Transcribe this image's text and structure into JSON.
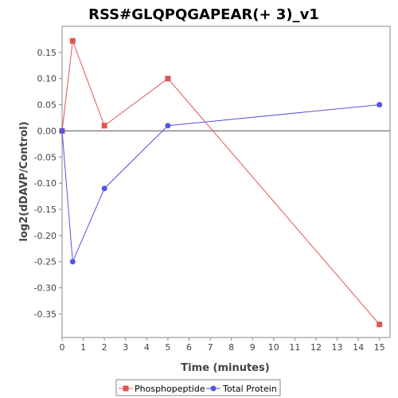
{
  "chart_data": {
    "type": "line",
    "title": "RSS#GLQPQGAPEAR(+ 3)_v1",
    "xlabel": "Time (minutes)",
    "ylabel": "log2(dDAVP/Control)",
    "xlim": [
      0,
      15.5
    ],
    "ylim": [
      -0.395,
      0.2
    ],
    "xticks": [
      0,
      1,
      2,
      3,
      4,
      5,
      6,
      7,
      8,
      9,
      10,
      11,
      12,
      13,
      14,
      15
    ],
    "yticks": [
      0.15,
      0.1,
      0.05,
      0.0,
      -0.05,
      -0.1,
      -0.15,
      -0.2,
      -0.25,
      -0.3,
      -0.35
    ],
    "ytick_labels": [
      "0.15",
      "0.10",
      "0.05",
      "0.00",
      "-0.05",
      "-0.10",
      "-0.15",
      "-0.20",
      "-0.25",
      "-0.30",
      "-0.35"
    ],
    "grid": false,
    "zero_line": true,
    "legend_position": "bottom",
    "series": [
      {
        "name": "Phosphopeptide",
        "color": "#e05555",
        "marker": "square",
        "x": [
          0,
          0.5,
          2,
          5,
          15
        ],
        "y": [
          0.0,
          0.172,
          0.01,
          0.1,
          -0.37
        ]
      },
      {
        "name": "Total Protein",
        "color": "#5555e0",
        "marker": "circle",
        "x": [
          0,
          0.5,
          2,
          5,
          15
        ],
        "y": [
          0.0,
          -0.25,
          -0.11,
          0.01,
          0.05
        ]
      }
    ]
  }
}
